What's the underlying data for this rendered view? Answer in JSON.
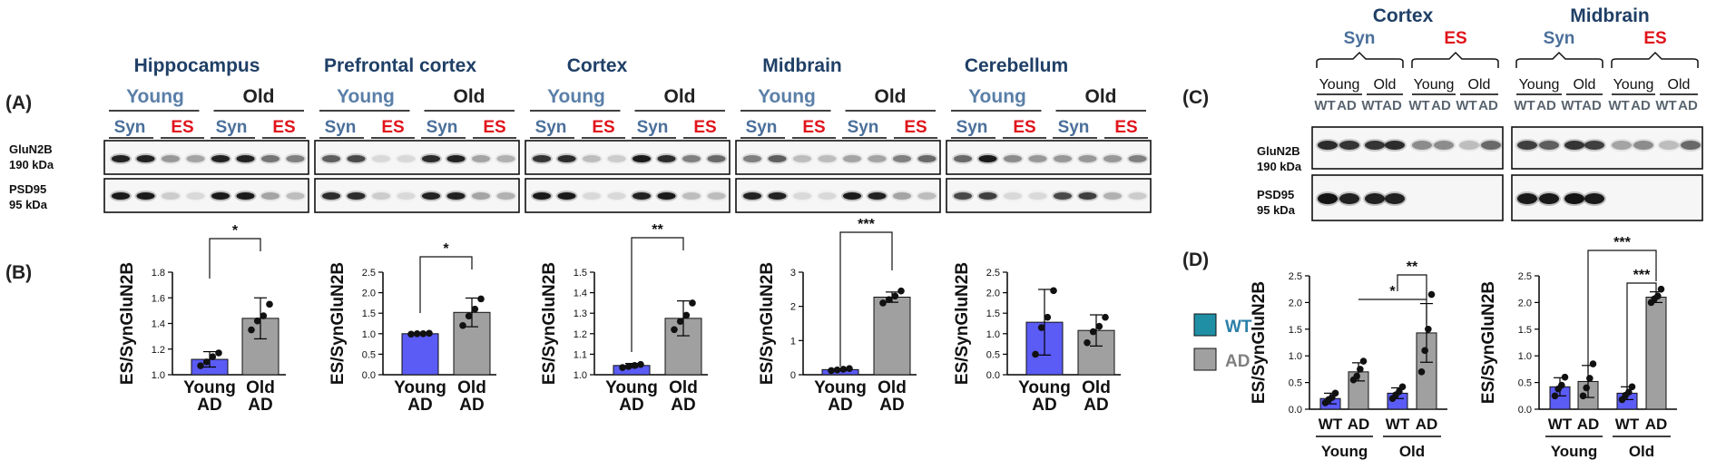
{
  "panel_labels": {
    "A": "(A)",
    "B": "(B)",
    "C": "(C)",
    "D": "(D)"
  },
  "colors": {
    "region_title": "#1f3f66",
    "young": "#5a7fa8",
    "syn": "#4a6f9a",
    "es": "#e0141a",
    "old": "#222222",
    "wt_bar": "#5b5bf5",
    "ad_bar": "#a0a0a0",
    "legend_wt": "#1f8fa5",
    "legend_wt_text": "#2a7fa8",
    "legend_ad_text": "#808080"
  },
  "blot_labels": {
    "glun2b": "GluN2B",
    "glun2b_kda": "190 kDa",
    "psd95": "PSD95",
    "psd95_kda": "95 kDa"
  },
  "panelA": {
    "young": "Young",
    "old": "Old",
    "syn": "Syn",
    "es": "ES",
    "regions": [
      "Hippocampus",
      "Prefrontal cortex",
      "Cortex",
      "Midbrain",
      "Cerebellum"
    ]
  },
  "panelC": {
    "regions": [
      "Cortex",
      "Midbrain"
    ],
    "syn": "Syn",
    "es": "ES",
    "young": "Young",
    "old": "Old",
    "wt": "WT",
    "ad": "AD"
  },
  "legend": {
    "wt": "WT",
    "ad": "AD"
  },
  "chart_data": [
    {
      "type": "bar",
      "panel": "B",
      "region": "Hippocampus",
      "ylabel": "ES/SynGluN2B",
      "categories": [
        [
          "Young",
          "AD"
        ],
        [
          "Old",
          "AD"
        ]
      ],
      "values": [
        1.12,
        1.44
      ],
      "errors": [
        0.06,
        0.16
      ],
      "points": [
        [
          1.07,
          1.1,
          1.14,
          1.17
        ],
        [
          1.35,
          1.42,
          1.46,
          1.55
        ]
      ],
      "ylim": [
        1.0,
        1.8
      ],
      "yticks": [
        "1.0",
        "1.2",
        "1.4",
        "1.6",
        "1.8"
      ],
      "significance": [
        {
          "from": 0,
          "to": 1,
          "label": "*"
        }
      ]
    },
    {
      "type": "bar",
      "panel": "B",
      "region": "Prefrontal cortex",
      "ylabel": "ES/SynGluN2B",
      "categories": [
        [
          "Young",
          "AD"
        ],
        [
          "Old",
          "AD"
        ]
      ],
      "values": [
        1.0,
        1.52
      ],
      "errors": [
        0.02,
        0.35
      ],
      "points": [
        [
          0.99,
          1.0,
          1.0,
          1.01
        ],
        [
          1.2,
          1.43,
          1.6,
          1.85
        ]
      ],
      "ylim": [
        0,
        2.5
      ],
      "yticks": [
        "0.0",
        "0.5",
        "1.0",
        "1.5",
        "2.0",
        "2.5"
      ],
      "significance": [
        {
          "from": 0,
          "to": 1,
          "label": "*"
        }
      ]
    },
    {
      "type": "bar",
      "panel": "B",
      "region": "Cortex",
      "ylabel": "ES/SynGluN2B",
      "categories": [
        [
          "Young",
          "AD"
        ],
        [
          "Old",
          "AD"
        ]
      ],
      "values": [
        1.045,
        1.275
      ],
      "errors": [
        0.01,
        0.085
      ],
      "points": [
        [
          1.035,
          1.04,
          1.045,
          1.05
        ],
        [
          1.22,
          1.26,
          1.29,
          1.35
        ]
      ],
      "ylim": [
        1.0,
        1.5
      ],
      "yticks": [
        "1.0",
        "1.1",
        "1.2",
        "1.3",
        "1.4",
        "1.5"
      ],
      "significance": [
        {
          "from": 0,
          "to": 1,
          "label": "**"
        }
      ]
    },
    {
      "type": "bar",
      "panel": "B",
      "region": "Midbrain",
      "ylabel": "ES/SynGluN2B",
      "categories": [
        [
          "Young",
          "AD"
        ],
        [
          "Old",
          "AD"
        ]
      ],
      "values": [
        0.15,
        2.27
      ],
      "errors": [
        0.03,
        0.15
      ],
      "points": [
        [
          0.12,
          0.14,
          0.16,
          0.18
        ],
        [
          2.1,
          2.2,
          2.3,
          2.45
        ]
      ],
      "ylim": [
        0,
        3
      ],
      "yticks": [
        "0",
        "1",
        "2",
        "3"
      ],
      "significance": [
        {
          "from": 0,
          "to": 1,
          "label": "***"
        }
      ]
    },
    {
      "type": "bar",
      "panel": "B",
      "region": "Cerebellum",
      "ylabel": "ES/SynGluN2B",
      "categories": [
        [
          "Young",
          "AD"
        ],
        [
          "Old",
          "AD"
        ]
      ],
      "values": [
        1.28,
        1.08
      ],
      "errors": [
        0.8,
        0.38
      ],
      "points": [
        [
          0.5,
          1.15,
          1.4,
          2.05
        ],
        [
          0.78,
          1.05,
          1.18,
          1.4
        ]
      ],
      "ylim": [
        0,
        2.5
      ],
      "yticks": [
        "0.0",
        "0.5",
        "1.0",
        "1.5",
        "2.0",
        "2.5"
      ],
      "significance": []
    },
    {
      "type": "bar",
      "panel": "D",
      "region": "Cortex",
      "ylabel": "ES/SynGluN2B",
      "categories": [
        "WT",
        "AD",
        "WT",
        "AD"
      ],
      "groups": [
        "Young",
        "Old"
      ],
      "values": [
        0.2,
        0.7,
        0.3,
        1.43
      ],
      "errors": [
        0.1,
        0.17,
        0.1,
        0.55
      ],
      "points": [
        [
          0.12,
          0.18,
          0.22,
          0.3
        ],
        [
          0.55,
          0.62,
          0.75,
          0.9
        ],
        [
          0.2,
          0.27,
          0.33,
          0.42
        ],
        [
          0.7,
          1.1,
          1.5,
          2.15
        ]
      ],
      "ylim": [
        0,
        2.5
      ],
      "yticks": [
        "0.0",
        "0.5",
        "1.0",
        "1.5",
        "2.0",
        "2.5"
      ],
      "significance": [
        {
          "from": 2,
          "to": 3,
          "label": "**"
        },
        {
          "from": 1,
          "to": 3,
          "label": "*"
        }
      ]
    },
    {
      "type": "bar",
      "panel": "D",
      "region": "Midbrain",
      "ylabel": "ES/SynGluN2B",
      "categories": [
        "WT",
        "AD",
        "WT",
        "AD"
      ],
      "groups": [
        "Young",
        "Old"
      ],
      "values": [
        0.42,
        0.52,
        0.3,
        2.1
      ],
      "errors": [
        0.17,
        0.3,
        0.12,
        0.1
      ],
      "points": [
        [
          0.25,
          0.38,
          0.45,
          0.6
        ],
        [
          0.25,
          0.4,
          0.58,
          0.85
        ],
        [
          0.18,
          0.26,
          0.32,
          0.42
        ],
        [
          2.0,
          2.07,
          2.12,
          2.25
        ]
      ],
      "ylim": [
        0,
        2.5
      ],
      "yticks": [
        "0.0",
        "0.5",
        "1.0",
        "1.5",
        "2.0",
        "2.5"
      ],
      "significance": [
        {
          "from": 2,
          "to": 3,
          "label": "***"
        },
        {
          "from": 1,
          "to": 3,
          "label": "***"
        }
      ]
    }
  ]
}
